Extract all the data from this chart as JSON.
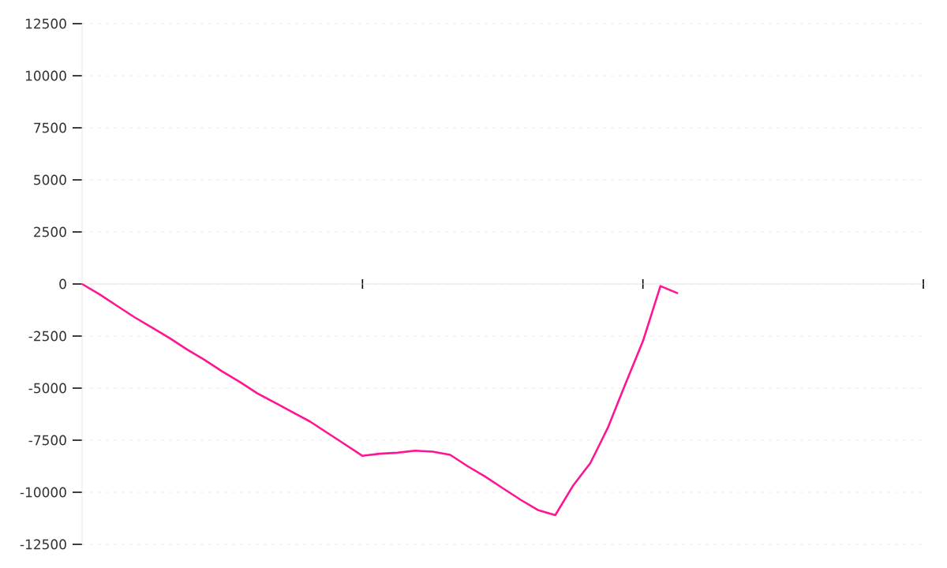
{
  "chart_data": {
    "type": "line",
    "categories": [
      null,
      null,
      null,
      null,
      null,
      null,
      null,
      null,
      null,
      null,
      null,
      null,
      null,
      null,
      null,
      null,
      null,
      null,
      null,
      null,
      null,
      null,
      null,
      null,
      null,
      null,
      null,
      null,
      null,
      null,
      null,
      null,
      null,
      null,
      null,
      null,
      null,
      null,
      null,
      null,
      null,
      null,
      null,
      null,
      null,
      null,
      null,
      null,
      null
    ],
    "values": [
      0,
      -500,
      -1050,
      -1600,
      -2100,
      -2600,
      -3150,
      -3650,
      -4200,
      -4700,
      -5250,
      -5700,
      -6150,
      -6600,
      -7150,
      -7700,
      -8250,
      -8150,
      -8100,
      -8000,
      -8050,
      -8200,
      -8750,
      -9250,
      -9800,
      -10350,
      -10850,
      -11100,
      -9700,
      -8600,
      -6900,
      -4800,
      -2750,
      -100,
      -450,
      null,
      null,
      null,
      null,
      null,
      null,
      null,
      null,
      null,
      null,
      null,
      null,
      null,
      null
    ],
    "color": "#ff1493",
    "ylim": [
      -12500,
      12500
    ],
    "yticks": [
      -12500,
      -10000,
      -7500,
      -5000,
      -2500,
      0,
      2500,
      5000,
      7500,
      10000,
      12500
    ],
    "tick_labels": "y",
    "grid": "y",
    "marker": "none",
    "line_style": "solid"
  }
}
